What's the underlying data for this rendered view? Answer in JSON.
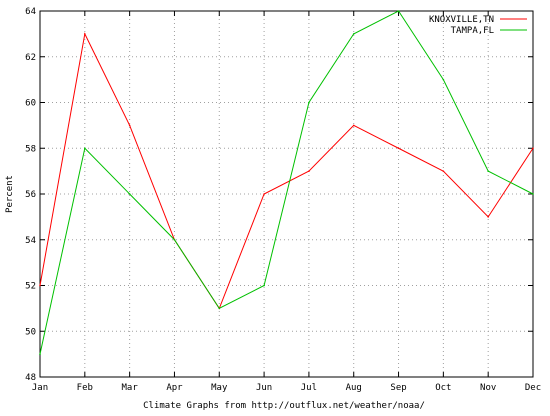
{
  "chart_data": {
    "type": "line",
    "title": "",
    "xlabel": "Climate Graphs from http://outflux.net/weather/noaa/",
    "ylabel": "Percent",
    "categories": [
      "Jan",
      "Feb",
      "Mar",
      "Apr",
      "May",
      "Jun",
      "Jul",
      "Aug",
      "Sep",
      "Oct",
      "Nov",
      "Dec"
    ],
    "ylim": [
      48,
      64
    ],
    "yticks": [
      48,
      50,
      52,
      54,
      56,
      58,
      60,
      62,
      64
    ],
    "grid": true,
    "legend_position": "top-right",
    "series": [
      {
        "name": "KNOXVILLE,TN",
        "color": "#ff0000",
        "values": [
          52,
          63,
          59,
          54,
          51,
          56,
          57,
          59,
          58,
          57,
          55,
          58
        ]
      },
      {
        "name": "TAMPA,FL",
        "color": "#00c000",
        "values": [
          49,
          58,
          56,
          54,
          51,
          52,
          60,
          63,
          64,
          61,
          57,
          56
        ]
      }
    ]
  }
}
